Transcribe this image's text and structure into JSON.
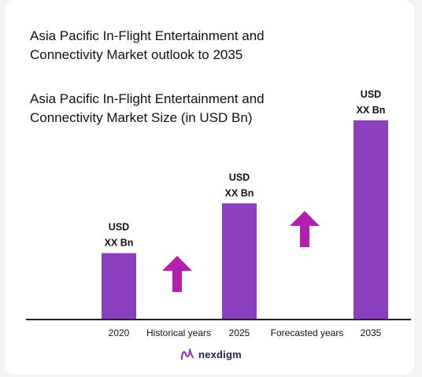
{
  "header": {
    "title_line1": "Asia Pacific In-Flight Entertainment and Connectivity Market outlook to 2035",
    "title_line2": "Asia Pacific In-Flight Entertainment and Connectivity Market Size (in USD Bn)"
  },
  "brand": {
    "name": "nexdigm"
  },
  "colors": {
    "bar": "#8b3fbf",
    "arrow": "#b51fae",
    "axis": "#222222"
  },
  "chart_data": {
    "type": "bar",
    "title": "Asia Pacific In-Flight Entertainment and Connectivity Market Size (in USD Bn)",
    "categories": [
      "2020",
      "2025",
      "2035"
    ],
    "values": [
      1,
      1.75,
      3
    ],
    "data_labels": [
      [
        "USD",
        "XX Bn"
      ],
      [
        "USD",
        "XX Bn"
      ],
      [
        "USD",
        "XX Bn"
      ]
    ],
    "interval_labels": [
      "Historical years",
      "Forecasted years"
    ],
    "ylim": [
      0,
      3.2
    ],
    "grid": false,
    "legend": "none"
  }
}
